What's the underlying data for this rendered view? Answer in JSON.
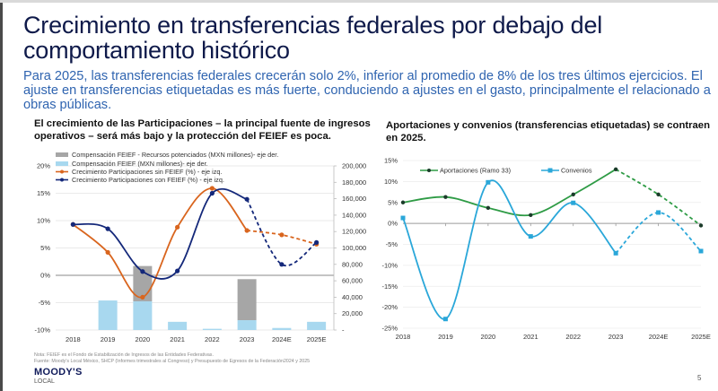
{
  "title": "Crecimiento en  transferencias federales por debajo del comportamiento histórico",
  "subtitle": "Para 2025, las transferencias federales crecerán solo 2%, inferior al promedio de 8% de los tres últimos ejercicios. El ajuste en transferencias etiquetadas es más fuerte, conduciendo a ajustes en el gasto, principalmente el relacionado a obras públicas.",
  "left_section_title": "El crecimiento de las Participaciones – la principal fuente de ingresos operativos – será más bajo y la protección del FEIEF es poca.",
  "right_section_title": "Aportaciones y convenios (transferencias etiquetadas) se contraen en 2025.",
  "notes": {
    "nota": "Nota: FEIEF es el Fondo de Estabilización de Ingresos de las Entidades Federativas.",
    "fuente": "Fuente: Moody's Local México, SHCP (Informes trimestrales al Congreso) y Presupuesto de Egresos de la Federación2024 y 2025"
  },
  "logo": {
    "name": "MOODY'S",
    "sub": "LOCAL"
  },
  "page_number": "5",
  "colors": {
    "title": "#0f1a4a",
    "subtitle": "#2f64b0",
    "gray_bar": "#a6a6a6",
    "lightblue_bar": "#a8d8ef",
    "orange": "#d9651e",
    "navy": "#14287a",
    "green": "#2e9b45",
    "cyan": "#2aa7d9"
  },
  "chart_data": [
    {
      "type": "bar",
      "title": "El crecimiento de las Participaciones",
      "categories": [
        "2018",
        "2019",
        "2020",
        "2021",
        "2022",
        "2023",
        "2024E",
        "2025E"
      ],
      "y_left": {
        "ticks": [
          "20%",
          "15%",
          "10%",
          "5%",
          "0%",
          "-5%",
          "-10%"
        ],
        "range": [
          -10,
          20
        ]
      },
      "y_right": {
        "ticks": [
          "200,000",
          "180,000",
          "160,000",
          "140,000",
          "120,000",
          "100,000",
          "80,000",
          "60,000",
          "40,000",
          "20,000",
          "-"
        ],
        "range": [
          0,
          200000
        ]
      },
      "legend": [
        "Compensación FEIEF - Recursos potenciados (MXN millones)- eje der.",
        "Compensación FEIEF (MXN millones)- eje der.",
        "Crecimiento Participaciones sin FEIEF (%) - eje izq.",
        "Crecimiento Participaciones con FEIEF (%) - eje izq."
      ],
      "legend_position": "top-left",
      "series": [
        {
          "name": "Compensación FEIEF - Recursos potenciados (MXN millones)- eje der.",
          "kind": "stacked-bar",
          "axis": "right",
          "values": [
            0,
            0,
            43000,
            0,
            0,
            50000,
            0,
            0
          ]
        },
        {
          "name": "Compensación FEIEF (MXN millones)- eje der.",
          "kind": "bar",
          "axis": "right",
          "values": [
            0,
            36000,
            35000,
            10000,
            1500,
            12000,
            2500,
            10000
          ]
        },
        {
          "name": "Crecimiento Participaciones sin FEIEF (%) - eje izq.",
          "kind": "line",
          "axis": "left",
          "values": [
            9.3,
            4.2,
            -4.0,
            8.8,
            15.9,
            8.2,
            7.4,
            5.7
          ],
          "dashed_from": "2023"
        },
        {
          "name": "Crecimiento Participaciones con FEIEF (%) - eje izq.",
          "kind": "line",
          "axis": "left",
          "values": [
            9.3,
            8.5,
            0.7,
            0.8,
            15.0,
            13.9,
            2.0,
            6.0
          ],
          "dashed_from": "2023"
        }
      ]
    },
    {
      "type": "line",
      "title": "Aportaciones y convenios (transferencias etiquetadas) se contraen en 2025.",
      "categories": [
        "2018",
        "2019",
        "2020",
        "2021",
        "2022",
        "2023",
        "2024E",
        "2025E"
      ],
      "y_ticks": [
        "15%",
        "10%",
        "5%",
        "0%",
        "-5%",
        "-10%",
        "-15%",
        "-20%",
        "-25%"
      ],
      "ylim": [
        -25,
        15
      ],
      "legend_position": "top-left",
      "series": [
        {
          "name": "Aportaciones (Ramo 33)",
          "values": [
            5.0,
            6.3,
            3.7,
            2.0,
            6.9,
            12.9,
            6.9,
            -0.5
          ],
          "dashed_from": "2023"
        },
        {
          "name": "Convenios",
          "values": [
            1.3,
            -22.8,
            9.8,
            -3.1,
            4.9,
            -7.1,
            2.6,
            -6.6
          ],
          "dashed_from": "2023"
        }
      ]
    }
  ]
}
